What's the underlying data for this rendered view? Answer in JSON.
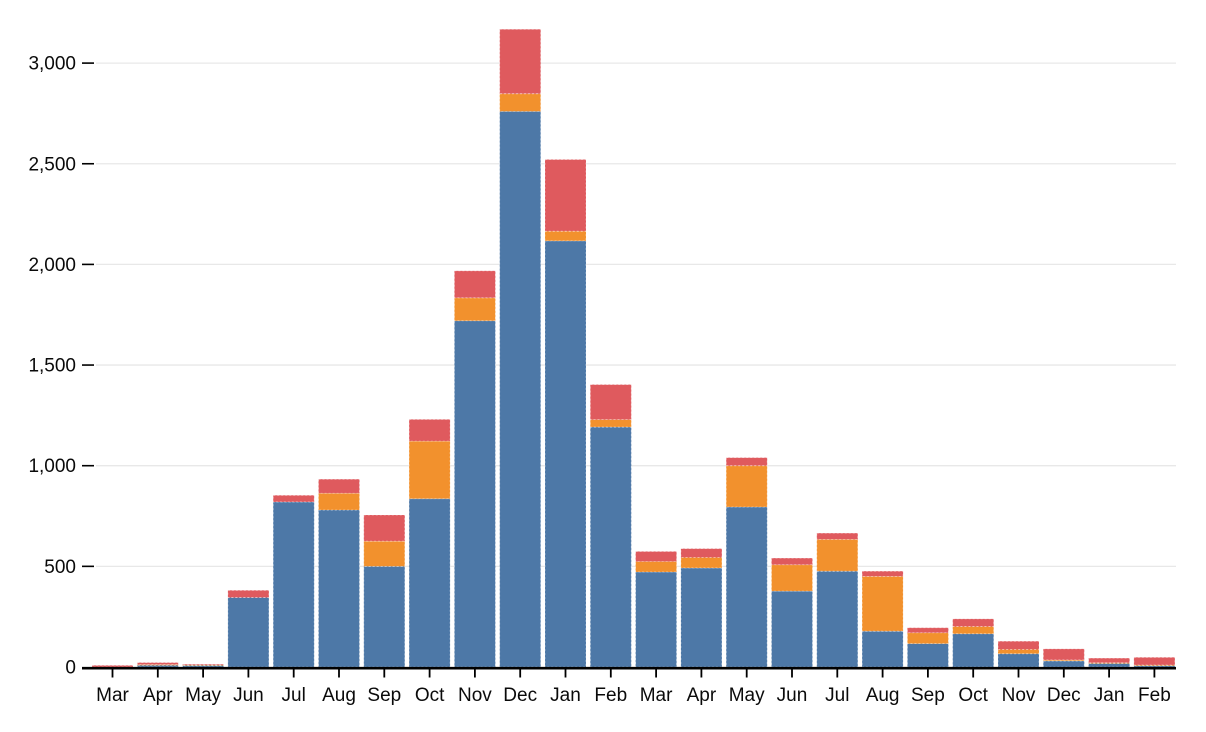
{
  "page": {
    "background": "#ffffff"
  },
  "chart_data": {
    "type": "bar",
    "stacked": true,
    "title": "",
    "xlabel": "",
    "ylabel": "",
    "grid": true,
    "legend": false,
    "categories": [
      "Mar",
      "Apr",
      "May",
      "Jun",
      "Jul",
      "Aug",
      "Sep",
      "Oct",
      "Nov",
      "Dec",
      "Jan",
      "Feb",
      "Mar",
      "Apr",
      "May",
      "Jun",
      "Jul",
      "Aug",
      "Sep",
      "Oct",
      "Nov",
      "Dec",
      "Jan",
      "Feb"
    ],
    "series": [
      {
        "name": "blue",
        "color": "#4d78a7",
        "values": [
          0,
          10,
          8,
          345,
          820,
          780,
          500,
          836,
          1720,
          2760,
          2117,
          1192,
          472,
          492,
          795,
          377,
          476,
          178,
          116,
          165,
          66,
          30,
          18,
          8
        ]
      },
      {
        "name": "orange",
        "color": "#f2912d",
        "values": [
          0,
          2,
          3,
          0,
          0,
          83,
          125,
          286,
          114,
          88,
          48,
          37,
          52,
          52,
          205,
          131,
          158,
          272,
          54,
          36,
          21,
          5,
          3,
          2
        ]
      },
      {
        "name": "red",
        "color": "#df5a5e",
        "values": [
          8,
          10,
          3,
          36,
          33,
          70,
          130,
          108,
          134,
          320,
          356,
          174,
          50,
          44,
          40,
          33,
          31,
          26,
          25,
          38,
          41,
          55,
          23,
          38
        ]
      }
    ],
    "y_axis": {
      "ticks": [
        0,
        500,
        1000,
        1500,
        2000,
        2500,
        3000
      ],
      "tick_labels": [
        "0",
        "500",
        "1,000",
        "1,500",
        "2,000",
        "2,500",
        "3,000"
      ],
      "range": [
        0,
        3200
      ]
    },
    "x_axis": {
      "labels": [
        "Mar",
        "Apr",
        "May",
        "Jun",
        "Jul",
        "Aug",
        "Sep",
        "Oct",
        "Nov",
        "Dec",
        "Jan",
        "Feb",
        "Mar",
        "Apr",
        "May",
        "Jun",
        "Jul",
        "Aug",
        "Sep",
        "Oct",
        "Nov",
        "Dec",
        "Jan",
        "Feb"
      ]
    },
    "style_colors": {
      "gridline": "#e8e8e8",
      "axis": "#000000",
      "tick_text": "#0a0a0a",
      "segment_divider": "rgba(255,255,255,0.5)"
    }
  }
}
